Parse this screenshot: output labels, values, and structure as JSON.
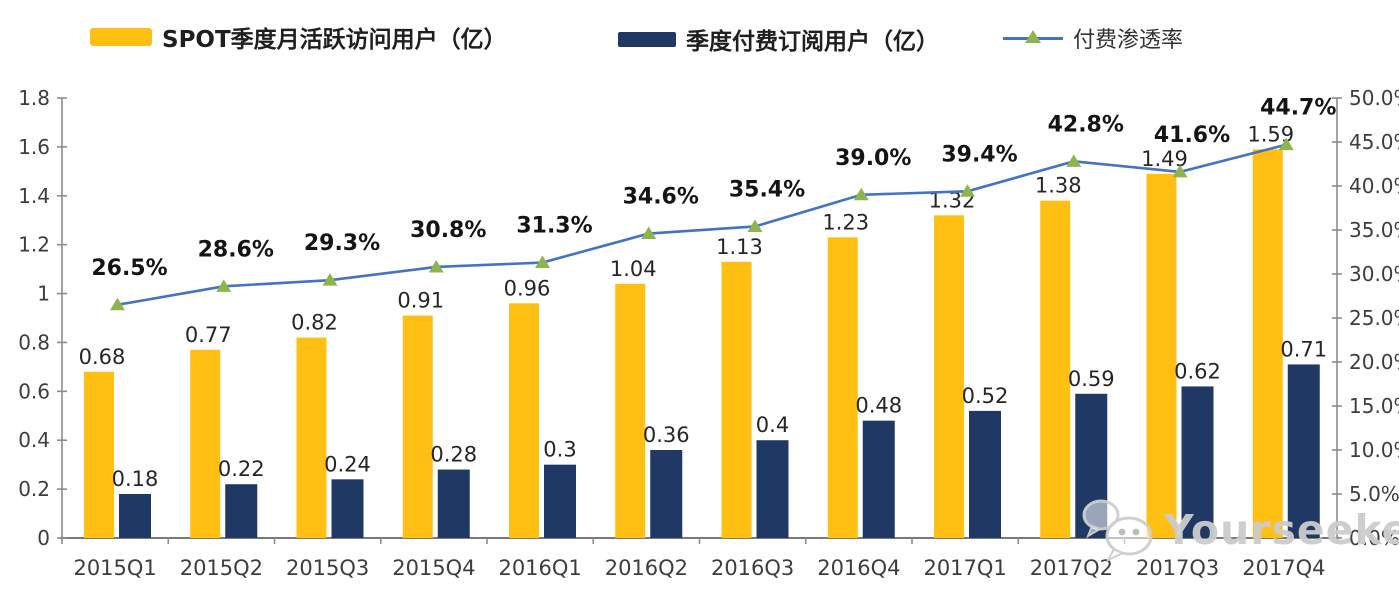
{
  "legend": {
    "items": [
      {
        "label": "SPOT季度月活跃访问用户（亿）",
        "swatch": "bar",
        "color": "#FFC013"
      },
      {
        "label": "季度付费订阅用户（亿）",
        "swatch": "bar",
        "color": "#1F3864"
      },
      {
        "label": "付费渗透率",
        "swatch": "line-triangle",
        "color": "#4472C4",
        "marker_color": "#8DB54B"
      }
    ]
  },
  "chart_data": {
    "type": "bar",
    "subtype": "grouped-bars-with-line-overlay",
    "categories": [
      "2015Q1",
      "2015Q2",
      "2015Q3",
      "2015Q4",
      "2016Q1",
      "2016Q2",
      "2016Q3",
      "2016Q4",
      "2017Q1",
      "2017Q2",
      "2017Q3",
      "2017Q4"
    ],
    "series": [
      {
        "name": "SPOT季度月活跃访问用户（亿）",
        "type": "bar",
        "axis": "left",
        "color": "#FFC013",
        "values": [
          0.68,
          0.77,
          0.82,
          0.91,
          0.96,
          1.04,
          1.13,
          1.23,
          1.32,
          1.38,
          1.49,
          1.59
        ],
        "labels": [
          "0.68",
          "0.77",
          "0.82",
          "0.91",
          "0.96",
          "1.04",
          "1.13",
          "1.23",
          "1.32",
          "1.38",
          "1.49",
          "1.59"
        ]
      },
      {
        "name": "季度付费订阅用户（亿）",
        "type": "bar",
        "axis": "left",
        "color": "#1F3864",
        "values": [
          0.18,
          0.22,
          0.24,
          0.28,
          0.3,
          0.36,
          0.4,
          0.48,
          0.52,
          0.59,
          0.62,
          0.71
        ],
        "labels": [
          "0.18",
          "0.22",
          "0.24",
          "0.28",
          "0.3",
          "0.36",
          "0.4",
          "0.48",
          "0.52",
          "0.59",
          "0.62",
          "0.71"
        ]
      },
      {
        "name": "付费渗透率",
        "type": "line",
        "axis": "right",
        "color": "#4472C4",
        "marker": "triangle",
        "marker_color": "#8DB54B",
        "values": [
          26.5,
          28.6,
          29.3,
          30.8,
          31.3,
          34.6,
          35.4,
          39.0,
          39.4,
          42.8,
          41.6,
          44.7
        ],
        "labels": [
          "26.5%",
          "28.6%",
          "29.3%",
          "30.8%",
          "31.3%",
          "34.6%",
          "35.4%",
          "39.0%",
          "39.4%",
          "42.8%",
          "41.6%",
          "44.7%"
        ]
      }
    ],
    "left_axis": {
      "min": 0,
      "max": 1.8,
      "tick_labels": [
        "1.8",
        "1.6",
        "1.4",
        "1.2",
        "1",
        "0.8",
        "0.6",
        "0.4",
        "0.2",
        "0"
      ]
    },
    "right_axis": {
      "min": 0,
      "max": 50,
      "tick_labels": [
        "50.0%",
        "45.0%",
        "40.0%",
        "35.0%",
        "30.0%",
        "25.0%",
        "20.0%",
        "15.0%",
        "10.0%",
        "5.0%",
        "0.0%"
      ]
    },
    "grid": false,
    "legend_position": "top",
    "title": ""
  },
  "watermark": {
    "text": "Yourseeker",
    "icon": "wechat-icon",
    "color": "#cbcbcb"
  },
  "style": {
    "axis_color": "#8c8c8c",
    "bottom_axis_color": "#7a7a7a",
    "tick_text_color": "#3d3d3d",
    "bar_label_color": "#262626",
    "pct_label_color": "#141414"
  }
}
